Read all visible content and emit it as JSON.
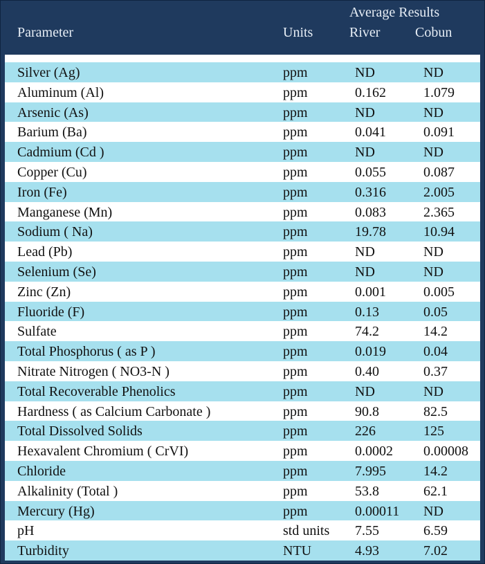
{
  "header": {
    "group_label": "Average Results",
    "col_parameter": "Parameter",
    "col_units": "Units",
    "col_river": "River",
    "col_cobun": "Cobun"
  },
  "rows": [
    {
      "parameter": "Silver (Ag)",
      "units": "ppm",
      "river": "ND",
      "cobun": "ND"
    },
    {
      "parameter": "Aluminum (Al)",
      "units": "ppm",
      "river": "0.162",
      "cobun": "1.079"
    },
    {
      "parameter": "Arsenic (As)",
      "units": "ppm",
      "river": "ND",
      "cobun": "ND"
    },
    {
      "parameter": "Barium (Ba)",
      "units": "ppm",
      "river": "0.041",
      "cobun": "0.091"
    },
    {
      "parameter": "Cadmium (Cd )",
      "units": "ppm",
      "river": "ND",
      "cobun": "ND"
    },
    {
      "parameter": "Copper (Cu)",
      "units": "ppm",
      "river": "0.055",
      "cobun": "0.087"
    },
    {
      "parameter": "Iron (Fe)",
      "units": "ppm",
      "river": "0.316",
      "cobun": "2.005"
    },
    {
      "parameter": "Manganese (Mn)",
      "units": "ppm",
      "river": "0.083",
      "cobun": "2.365"
    },
    {
      "parameter": "Sodium ( Na)",
      "units": "ppm",
      "river": "19.78",
      "cobun": "10.94"
    },
    {
      "parameter": "Lead (Pb)",
      "units": "ppm",
      "river": "ND",
      "cobun": "ND"
    },
    {
      "parameter": "Selenium (Se)",
      "units": "ppm",
      "river": "ND",
      "cobun": "ND"
    },
    {
      "parameter": "Zinc (Zn)",
      "units": "ppm",
      "river": "0.001",
      "cobun": "0.005"
    },
    {
      "parameter": "Fluoride (F)",
      "units": "ppm",
      "river": "0.13",
      "cobun": "0.05"
    },
    {
      "parameter": "Sulfate",
      "units": "ppm",
      "river": "74.2",
      "cobun": "14.2"
    },
    {
      "parameter": "Total Phosphorus ( as P )",
      "units": "ppm",
      "river": "0.019",
      "cobun": "0.04"
    },
    {
      "parameter": "Nitrate Nitrogen ( NO3-N )",
      "units": "ppm",
      "river": "0.40",
      "cobun": "0.37"
    },
    {
      "parameter": "Total Recoverable Phenolics",
      "units": "ppm",
      "river": "ND",
      "cobun": "ND"
    },
    {
      "parameter": "Hardness ( as Calcium Carbonate )",
      "units": "ppm",
      "river": "90.8",
      "cobun": "82.5"
    },
    {
      "parameter": "Total Dissolved Solids",
      "units": "ppm",
      "river": "226",
      "cobun": "125"
    },
    {
      "parameter": "Hexavalent Chromium ( CrVI)",
      "units": "ppm",
      "river": "0.0002",
      "cobun": "0.00008"
    },
    {
      "parameter": "Chloride",
      "units": "ppm",
      "river": "7.995",
      "cobun": "14.2"
    },
    {
      "parameter": "Alkalinity (Total )",
      "units": "ppm",
      "river": "53.8",
      "cobun": "62.1"
    },
    {
      "parameter": "Mercury (Hg)",
      "units": "ppm",
      "river": "0.00011",
      "cobun": "ND"
    },
    {
      "parameter": "pH",
      "units": "std units",
      "river": "7.55",
      "cobun": "6.59"
    },
    {
      "parameter": "Turbidity",
      "units": "NTU",
      "river": "4.93",
      "cobun": "7.02"
    }
  ]
}
